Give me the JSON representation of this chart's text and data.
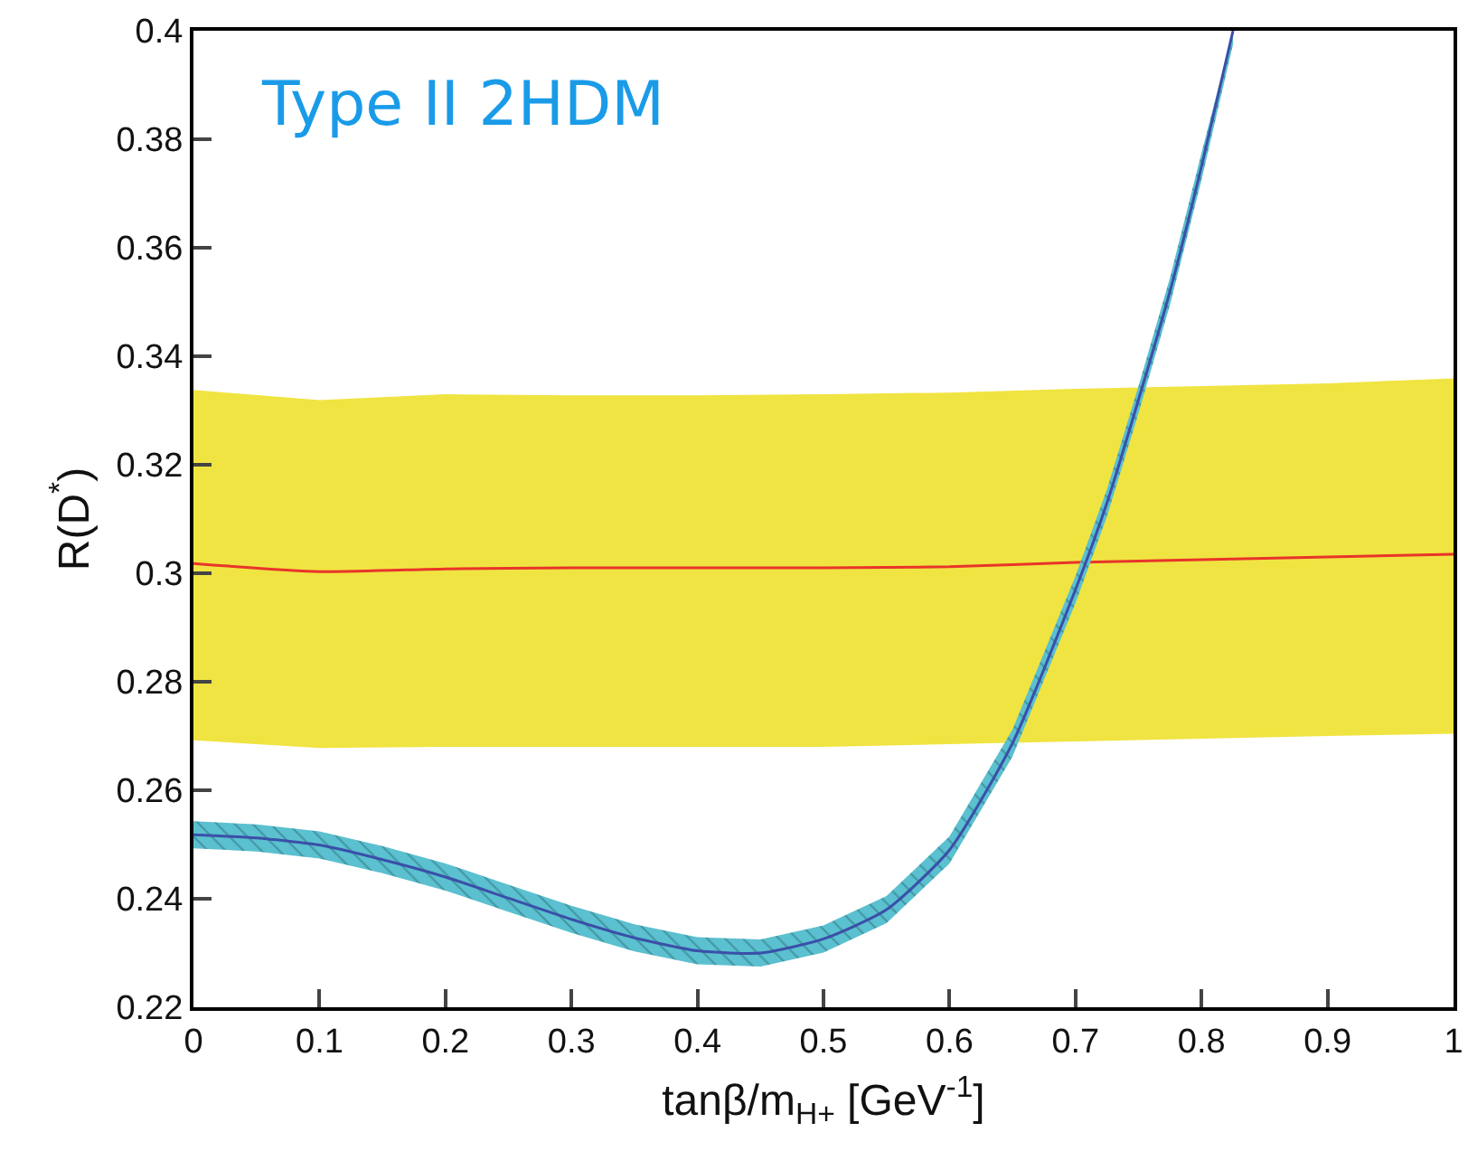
{
  "chart_data": {
    "type": "line",
    "xlabel": "tanβ/m$_{H+}$ [GeV$^{-1}$]",
    "ylabel": "R(D$^{*}$)",
    "annotations": [
      "Type II 2HDM"
    ],
    "series": [
      {
        "color": "#e8342a",
        "x": [
          0,
          0.1,
          0.2,
          0.3,
          0.4,
          0.5,
          0.6,
          0.7,
          0.8,
          0.9,
          1
        ],
        "values": [
          0.3018,
          0.3003,
          0.3008,
          0.301,
          0.301,
          0.301,
          0.3012,
          0.302,
          0.3025,
          0.303,
          0.3035
        ],
        "lower": [
          0.2692,
          0.2678,
          0.268,
          0.268,
          0.268,
          0.268,
          0.2685,
          0.269,
          0.2695,
          0.27,
          0.2704
        ],
        "upper": [
          0.3338,
          0.3319,
          0.333,
          0.3328,
          0.3328,
          0.333,
          0.3333,
          0.334,
          0.3345,
          0.335,
          0.3359
        ]
      },
      {
        "color": "#3a4fa8",
        "x": [
          0,
          0.05,
          0.1,
          0.15,
          0.2,
          0.25,
          0.3,
          0.35,
          0.4,
          0.45,
          0.5,
          0.55,
          0.6,
          0.65,
          0.7,
          0.725,
          0.75,
          0.775,
          0.8,
          0.825
        ],
        "values": [
          0.2518,
          0.2512,
          0.2499,
          0.2472,
          0.244,
          0.2401,
          0.2362,
          0.2328,
          0.2304,
          0.23,
          0.2326,
          0.238,
          0.249,
          0.2687,
          0.297,
          0.313,
          0.332,
          0.352,
          0.375,
          0.4
        ],
        "lower": [
          0.2493,
          0.2487,
          0.2474,
          0.2447,
          0.2415,
          0.2376,
          0.2337,
          0.2303,
          0.2279,
          0.2275,
          0.2301,
          0.2355,
          0.2465,
          0.2662,
          0.2945,
          0.3105,
          0.3295,
          0.3495,
          0.3725,
          0.3975
        ],
        "upper": [
          0.2543,
          0.2537,
          0.2524,
          0.2497,
          0.2465,
          0.2426,
          0.2387,
          0.2353,
          0.2329,
          0.2325,
          0.2351,
          0.2405,
          0.2515,
          0.2712,
          0.2995,
          0.3155,
          0.3345,
          0.3545,
          0.3775,
          0.4
        ]
      }
    ],
    "xlim": [
      0,
      1
    ],
    "xticks": [
      0,
      0.1,
      0.2,
      0.3,
      0.4,
      0.5,
      0.6,
      0.7,
      0.8,
      0.9,
      1
    ],
    "ylim": [
      0.22,
      0.4
    ],
    "yticks": [
      0.22,
      0.24,
      0.26,
      0.28,
      0.3,
      0.32,
      0.34,
      0.36,
      0.38,
      0.4
    ],
    "grid": false,
    "marker": "none",
    "line_style": "solid"
  }
}
